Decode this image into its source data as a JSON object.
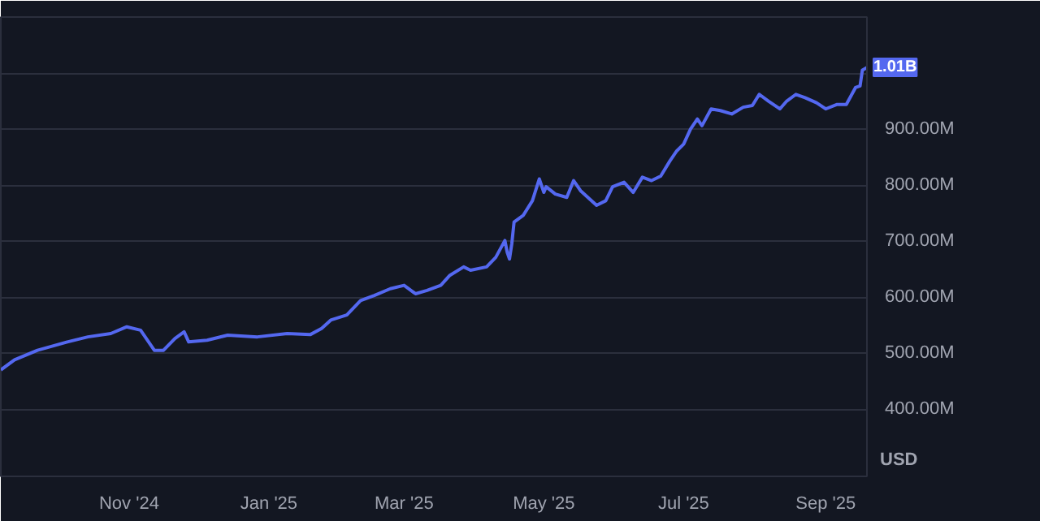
{
  "chart_data": {
    "type": "line",
    "xlim": [
      "2024-09-06",
      "2025-09-19"
    ],
    "ylim": [
      280,
      1100
    ],
    "xticks": [
      {
        "value": "2024-11-01",
        "label": "Nov '24"
      },
      {
        "value": "2025-01-01",
        "label": "Jan '25"
      },
      {
        "value": "2025-03-01",
        "label": "Mar '25"
      },
      {
        "value": "2025-05-01",
        "label": "May '25"
      },
      {
        "value": "2025-07-01",
        "label": "Jul '25"
      },
      {
        "value": "2025-09-01",
        "label": "Sep '25"
      }
    ],
    "yticks": [
      {
        "value": 400,
        "label": "400.00M"
      },
      {
        "value": 500,
        "label": "500.00M"
      },
      {
        "value": 600,
        "label": "600.00M"
      },
      {
        "value": 700,
        "label": "700.00M"
      },
      {
        "value": 800,
        "label": "800.00M"
      },
      {
        "value": 900,
        "label": "900.00M"
      },
      {
        "value": 1000,
        "label": null
      },
      {
        "value": 1100,
        "label": null
      }
    ],
    "grid": "y",
    "marker": "none",
    "line_style": "solid",
    "annotations": [
      {
        "text": "1.01B",
        "x": "2025-09-19",
        "y": 1010
      },
      "USD"
    ],
    "series": [
      {
        "color": "#5468f0",
        "x": [
          "2024-09-06",
          "2024-09-12",
          "2024-09-22",
          "2024-10-05",
          "2024-10-14",
          "2024-10-24",
          "2024-10-31",
          "2024-11-06",
          "2024-11-12",
          "2024-11-16",
          "2024-11-21",
          "2024-11-25",
          "2024-11-27",
          "2024-12-05",
          "2024-12-14",
          "2024-12-27",
          "2025-01-09",
          "2025-01-19",
          "2025-01-24",
          "2025-01-28",
          "2025-02-04",
          "2025-02-10",
          "2025-02-16",
          "2025-02-23",
          "2025-03-01",
          "2025-03-06",
          "2025-03-11",
          "2025-03-17",
          "2025-03-21",
          "2025-03-27",
          "2025-03-30",
          "2025-04-06",
          "2025-04-10",
          "2025-04-14",
          "2025-04-15",
          "2025-04-16",
          "2025-04-17",
          "2025-04-18",
          "2025-04-22",
          "2025-04-26",
          "2025-04-29",
          "2025-05-01",
          "2025-05-02",
          "2025-05-06",
          "2025-05-11",
          "2025-05-14",
          "2025-05-17",
          "2025-05-24",
          "2025-05-28",
          "2025-05-31",
          "2025-06-05",
          "2025-06-09",
          "2025-06-13",
          "2025-06-17",
          "2025-06-21",
          "2025-06-25",
          "2025-06-28",
          "2025-07-01",
          "2025-07-04",
          "2025-07-07",
          "2025-07-09",
          "2025-07-13",
          "2025-07-17",
          "2025-07-22",
          "2025-07-27",
          "2025-07-31",
          "2025-08-03",
          "2025-08-07",
          "2025-08-12",
          "2025-08-15",
          "2025-08-19",
          "2025-08-23",
          "2025-08-28",
          "2025-09-01",
          "2025-09-06",
          "2025-09-10",
          "2025-09-14",
          "2025-09-16",
          "2025-09-17",
          "2025-09-19"
        ],
        "values": [
          470,
          488,
          505,
          520,
          529,
          535,
          547,
          541,
          505,
          505,
          526,
          538,
          520,
          523,
          532,
          529,
          535,
          533,
          544,
          559,
          568,
          594,
          603,
          615,
          621,
          606,
          612,
          621,
          639,
          654,
          648,
          654,
          671,
          701,
          680,
          668,
          695,
          734,
          746,
          772,
          811,
          787,
          797,
          784,
          778,
          808,
          790,
          764,
          772,
          797,
          805,
          787,
          814,
          808,
          816,
          843,
          861,
          873,
          900,
          918,
          906,
          936,
          933,
          927,
          939,
          942,
          962,
          950,
          936,
          950,
          962,
          956,
          947,
          936,
          944,
          944,
          974,
          977,
          1005,
          1010
        ]
      }
    ]
  }
}
